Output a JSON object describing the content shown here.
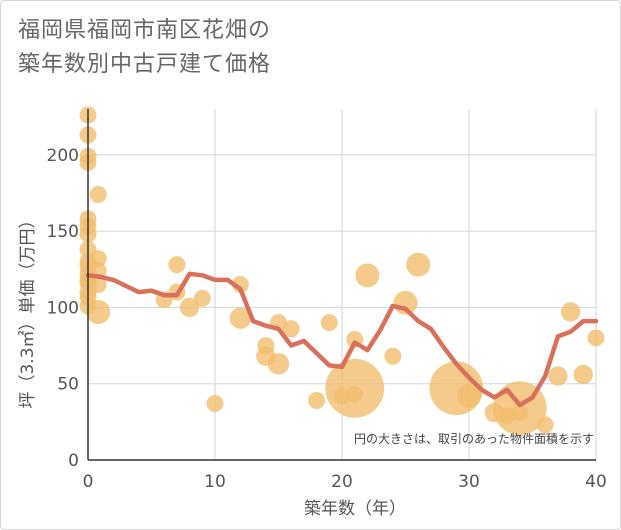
{
  "title": {
    "line1": "福岡県福岡市南区花畑の",
    "line2": "築年数別中古戸建て価格"
  },
  "chart_data": {
    "type": "scatter",
    "title": "福岡県福岡市南区花畑の 築年数別中古戸建て価格",
    "xlabel": "築年数（年）",
    "ylabel": "坪（3.3㎡）単価（万円）",
    "xlim": [
      0,
      40
    ],
    "ylim": [
      0,
      230
    ],
    "xticks": [
      0,
      10,
      20,
      30,
      40
    ],
    "yticks": [
      0,
      50,
      100,
      150,
      200
    ],
    "xtick_labels": [
      "0",
      "10",
      "20",
      "30",
      "40"
    ],
    "ytick_labels": [
      "0",
      "50",
      "100",
      "150",
      "200"
    ],
    "grid": true,
    "annotation": "円の大きさは、取引のあった物件面積を示す",
    "colors": {
      "bubble": "#f2bd6b",
      "line": "#d9705a",
      "grid": "#cdd6e0",
      "text": "#555555"
    },
    "series": [
      {
        "name": "transactions",
        "kind": "bubble",
        "points": [
          {
            "x": 0,
            "y": 226,
            "size": 1
          },
          {
            "x": 0,
            "y": 213,
            "size": 1
          },
          {
            "x": 0,
            "y": 199,
            "size": 1
          },
          {
            "x": 0,
            "y": 195,
            "size": 1
          },
          {
            "x": 0,
            "y": 158,
            "size": 1
          },
          {
            "x": 0,
            "y": 153,
            "size": 1
          },
          {
            "x": 0,
            "y": 148,
            "size": 1
          },
          {
            "x": 0,
            "y": 138,
            "size": 1
          },
          {
            "x": 0,
            "y": 130,
            "size": 1
          },
          {
            "x": 0,
            "y": 127,
            "size": 1
          },
          {
            "x": 0,
            "y": 122,
            "size": 1
          },
          {
            "x": 0,
            "y": 118,
            "size": 1
          },
          {
            "x": 0,
            "y": 116,
            "size": 1
          },
          {
            "x": 0,
            "y": 110,
            "size": 1
          },
          {
            "x": 0,
            "y": 107,
            "size": 1
          },
          {
            "x": 0,
            "y": 101,
            "size": 1
          },
          {
            "x": 0.8,
            "y": 174,
            "size": 1
          },
          {
            "x": 0.8,
            "y": 132,
            "size": 1
          },
          {
            "x": 0.8,
            "y": 124,
            "size": 1
          },
          {
            "x": 0.8,
            "y": 115,
            "size": 1
          },
          {
            "x": 0.8,
            "y": 97,
            "size": 2
          },
          {
            "x": 6,
            "y": 105,
            "size": 1
          },
          {
            "x": 7,
            "y": 128,
            "size": 1
          },
          {
            "x": 7,
            "y": 110,
            "size": 1
          },
          {
            "x": 8,
            "y": 100,
            "size": 1.3
          },
          {
            "x": 9,
            "y": 106,
            "size": 1
          },
          {
            "x": 10,
            "y": 37,
            "size": 1
          },
          {
            "x": 12,
            "y": 115,
            "size": 1
          },
          {
            "x": 12,
            "y": 93,
            "size": 1.6
          },
          {
            "x": 14,
            "y": 75,
            "size": 1
          },
          {
            "x": 14,
            "y": 68,
            "size": 1.3
          },
          {
            "x": 15,
            "y": 90,
            "size": 1
          },
          {
            "x": 15,
            "y": 63,
            "size": 1.6
          },
          {
            "x": 16,
            "y": 86,
            "size": 1
          },
          {
            "x": 18,
            "y": 39,
            "size": 1
          },
          {
            "x": 19,
            "y": 90,
            "size": 1
          },
          {
            "x": 20,
            "y": 42,
            "size": 1
          },
          {
            "x": 21,
            "y": 79,
            "size": 1
          },
          {
            "x": 21,
            "y": 47,
            "size": 12
          },
          {
            "x": 21,
            "y": 43,
            "size": 1
          },
          {
            "x": 22,
            "y": 121,
            "size": 2
          },
          {
            "x": 24,
            "y": 68,
            "size": 1
          },
          {
            "x": 25,
            "y": 103,
            "size": 2
          },
          {
            "x": 26,
            "y": 128,
            "size": 2
          },
          {
            "x": 29,
            "y": 47,
            "size": 10
          },
          {
            "x": 30,
            "y": 42,
            "size": 2
          },
          {
            "x": 32,
            "y": 31,
            "size": 1.3
          },
          {
            "x": 33,
            "y": 29,
            "size": 1
          },
          {
            "x": 34,
            "y": 34,
            "size": 10
          },
          {
            "x": 34,
            "y": 31,
            "size": 1
          },
          {
            "x": 36,
            "y": 23,
            "size": 1
          },
          {
            "x": 37,
            "y": 55,
            "size": 1.3
          },
          {
            "x": 38,
            "y": 97,
            "size": 1.3
          },
          {
            "x": 39,
            "y": 56,
            "size": 1.3
          },
          {
            "x": 40,
            "y": 80,
            "size": 1
          }
        ]
      },
      {
        "name": "average",
        "kind": "line",
        "x": [
          0,
          1,
          2,
          3,
          4,
          5,
          6,
          7,
          8,
          9,
          10,
          11,
          12,
          13,
          14,
          15,
          16,
          17,
          18,
          19,
          20,
          21,
          22,
          23,
          24,
          25,
          26,
          27,
          28,
          29,
          30,
          31,
          32,
          33,
          34,
          35,
          36,
          37,
          38,
          39,
          40
        ],
        "y": [
          121,
          120,
          118,
          114,
          110,
          111,
          108,
          108,
          122,
          121,
          118,
          118,
          112,
          91,
          88,
          86,
          75,
          78,
          70,
          62,
          61,
          77,
          72,
          85,
          101,
          99,
          91,
          86,
          74,
          63,
          54,
          46,
          41,
          46,
          36,
          41,
          55,
          81,
          84,
          91,
          91
        ]
      }
    ]
  }
}
